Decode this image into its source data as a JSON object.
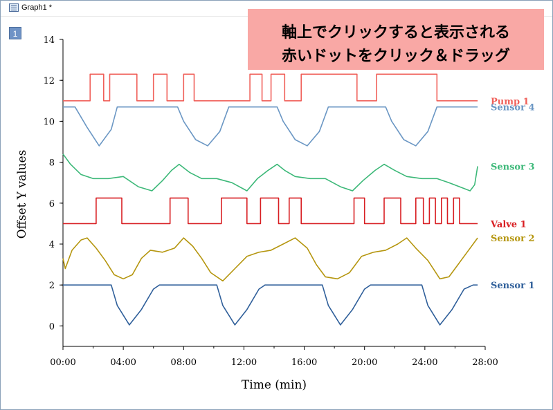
{
  "window": {
    "title": "Graph1 *",
    "layer_label": "1"
  },
  "callout": {
    "line1": "軸上でクリックすると表示される",
    "line2": "赤いドットをクリック＆ドラッグ"
  },
  "chart_data": {
    "type": "line",
    "xlabel": "Time (min)",
    "ylabel": "Offset Y values",
    "xlim": [
      0,
      28
    ],
    "ylim": [
      -1,
      14
    ],
    "x_ticks": [
      {
        "value": 0,
        "label": "00:00"
      },
      {
        "value": 4,
        "label": "04:00"
      },
      {
        "value": 8,
        "label": "08:00"
      },
      {
        "value": 12,
        "label": "12:00"
      },
      {
        "value": 16,
        "label": "16:00"
      },
      {
        "value": 20,
        "label": "20:00"
      },
      {
        "value": 24,
        "label": "24:00"
      },
      {
        "value": 28,
        "label": "28:00"
      }
    ],
    "y_ticks": [
      0,
      2,
      4,
      6,
      8,
      10,
      12,
      14
    ],
    "grid": false,
    "legend_position": "right",
    "series": [
      {
        "name": "Pump 1",
        "color": "#f0605a",
        "kind": "step",
        "x": [
          0,
          1.8,
          1.8,
          2.7,
          2.7,
          3.1,
          3.1,
          4.9,
          4.9,
          6.0,
          6.0,
          6.9,
          6.9,
          8.0,
          8.0,
          8.7,
          8.7,
          12.4,
          12.4,
          13.2,
          13.2,
          13.8,
          13.8,
          14.7,
          14.7,
          15.8,
          15.8,
          19.5,
          19.5,
          20.8,
          20.8,
          24.8,
          24.8,
          25.6,
          25.6,
          27.5
        ],
        "y": [
          11,
          11,
          12.3,
          12.3,
          11,
          11,
          12.3,
          12.3,
          11,
          11,
          12.3,
          12.3,
          11,
          11,
          12.3,
          12.3,
          11,
          11,
          12.3,
          12.3,
          11,
          11,
          12.3,
          12.3,
          11,
          11,
          12.3,
          12.3,
          11,
          11,
          12.3,
          12.3,
          11,
          11,
          11,
          11
        ]
      },
      {
        "name": "Sensor 4",
        "color": "#6b97c4",
        "kind": "line",
        "x": [
          0,
          0.8,
          1.6,
          2.4,
          3.2,
          3.6,
          7.6,
          8.0,
          8.8,
          9.6,
          10.4,
          11.0,
          14.2,
          14.6,
          15.4,
          16.2,
          17.0,
          17.6,
          21.4,
          21.8,
          22.6,
          23.4,
          24.2,
          24.8,
          27.5
        ],
        "y": [
          10.7,
          10.7,
          9.7,
          8.8,
          9.6,
          10.7,
          10.7,
          10.0,
          9.1,
          8.8,
          9.5,
          10.7,
          10.7,
          10.0,
          9.1,
          8.8,
          9.5,
          10.7,
          10.7,
          10.0,
          9.1,
          8.8,
          9.5,
          10.7,
          10.7
        ]
      },
      {
        "name": "Sensor 3",
        "color": "#3cb878",
        "kind": "line",
        "x": [
          0,
          0.5,
          1.2,
          2.0,
          3.0,
          4.0,
          5.0,
          5.9,
          6.6,
          7.2,
          7.7,
          8.4,
          9.2,
          10.2,
          11.2,
          12.2,
          12.9,
          13.6,
          14.2,
          14.7,
          15.4,
          16.4,
          17.4,
          18.4,
          19.2,
          19.9,
          20.7,
          21.3,
          22.0,
          22.8,
          23.8,
          24.8,
          25.6,
          26.3,
          27.0,
          27.3,
          27.5
        ],
        "y": [
          8.4,
          7.9,
          7.4,
          7.2,
          7.2,
          7.3,
          6.8,
          6.6,
          7.1,
          7.6,
          7.9,
          7.5,
          7.2,
          7.2,
          7.0,
          6.6,
          7.2,
          7.6,
          7.9,
          7.6,
          7.3,
          7.2,
          7.2,
          6.8,
          6.6,
          7.1,
          7.6,
          7.9,
          7.6,
          7.3,
          7.2,
          7.2,
          7.0,
          6.8,
          6.6,
          6.9,
          7.8
        ]
      },
      {
        "name": "Valve 1",
        "color": "#d81e22",
        "kind": "step",
        "x": [
          0,
          2.2,
          2.2,
          3.9,
          3.9,
          7.1,
          7.1,
          8.3,
          8.3,
          10.5,
          10.5,
          12.2,
          12.2,
          13.1,
          13.1,
          14.3,
          14.3,
          15.0,
          15.0,
          15.8,
          15.8,
          19.3,
          19.3,
          20.0,
          20.0,
          21.3,
          21.3,
          22.4,
          22.4,
          23.4,
          23.4,
          23.9,
          23.9,
          24.3,
          24.3,
          24.7,
          24.7,
          25.1,
          25.1,
          25.5,
          25.5,
          25.9,
          25.9,
          26.3,
          26.3,
          26.7,
          26.7,
          27.5
        ],
        "y": [
          5,
          5,
          6.25,
          6.25,
          5,
          5,
          6.25,
          6.25,
          5,
          5,
          6.25,
          6.25,
          5,
          5,
          6.25,
          6.25,
          5,
          5,
          6.25,
          6.25,
          5,
          5,
          6.25,
          6.25,
          5,
          5,
          6.25,
          6.25,
          5,
          5,
          6.25,
          6.25,
          5,
          5,
          6.25,
          6.25,
          5,
          5,
          6.25,
          6.25,
          5,
          5,
          6.25,
          6.25,
          5,
          5,
          5,
          5
        ]
      },
      {
        "name": "Sensor 2",
        "color": "#b5960f",
        "kind": "line",
        "x": [
          0,
          0.15,
          0.6,
          1.2,
          1.6,
          2.2,
          2.8,
          3.4,
          4.0,
          4.6,
          5.2,
          5.8,
          6.6,
          7.4,
          8.0,
          8.6,
          9.2,
          9.8,
          10.6,
          11.4,
          12.2,
          13.0,
          13.8,
          14.6,
          15.4,
          16.2,
          16.8,
          17.4,
          18.2,
          19.0,
          19.8,
          20.6,
          21.4,
          22.2,
          22.8,
          23.4,
          24.2,
          25.0,
          25.6,
          26.2,
          26.8,
          27.2,
          27.5
        ],
        "y": [
          3.3,
          2.8,
          3.7,
          4.2,
          4.3,
          3.8,
          3.2,
          2.5,
          2.3,
          2.5,
          3.3,
          3.7,
          3.6,
          3.8,
          4.3,
          3.9,
          3.3,
          2.6,
          2.2,
          2.8,
          3.4,
          3.6,
          3.7,
          4.0,
          4.3,
          3.8,
          3.0,
          2.4,
          2.3,
          2.6,
          3.4,
          3.6,
          3.7,
          4.0,
          4.3,
          3.8,
          3.2,
          2.3,
          2.4,
          3.0,
          3.6,
          4.0,
          4.3
        ]
      },
      {
        "name": "Sensor 1",
        "color": "#2f5f9a",
        "kind": "line",
        "x": [
          0,
          3.2,
          3.6,
          4.4,
          5.2,
          6.0,
          6.4,
          10.2,
          10.6,
          11.4,
          12.2,
          13.0,
          13.4,
          17.2,
          17.6,
          18.4,
          19.2,
          20.0,
          20.4,
          23.8,
          24.2,
          25.0,
          25.8,
          26.6,
          27.2,
          27.5
        ],
        "y": [
          2,
          2,
          1.0,
          0.05,
          0.8,
          1.8,
          2,
          2,
          1.0,
          0.05,
          0.8,
          1.8,
          2,
          2,
          1.0,
          0.05,
          0.8,
          1.8,
          2,
          2,
          1.0,
          0.05,
          0.8,
          1.8,
          2,
          2
        ]
      }
    ]
  }
}
